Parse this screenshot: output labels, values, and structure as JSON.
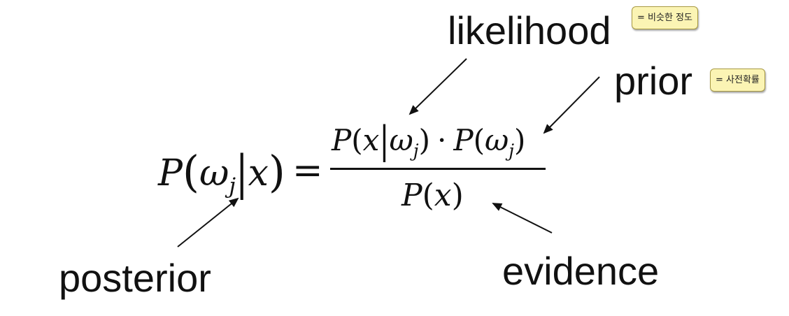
{
  "labels": {
    "likelihood": "likelihood",
    "prior": "prior",
    "posterior": "posterior",
    "evidence": "evidence"
  },
  "notes": {
    "likelihood_note": "= 비슷한 정도",
    "prior_note": "= 사전확률"
  },
  "equation": {
    "lhs": {
      "P": "P",
      "open": "(",
      "omega": "ω",
      "j": "j",
      "bar": "|",
      "x": "x",
      "close": ")"
    },
    "equals": "=",
    "numerator": {
      "P1": "P",
      "open1": "(",
      "x": "x",
      "bar": "|",
      "omega1": "ω",
      "j1": "j",
      "close1": ")",
      "dot": "·",
      "P2": "P",
      "open2": "(",
      "omega2": "ω",
      "j2": "j",
      "close2": ")"
    },
    "denominator": {
      "P": "P",
      "open": "(",
      "x": "x",
      "close": ")"
    }
  },
  "colors": {
    "text": "#111111",
    "note_background": "#fbf4b4",
    "note_border": "#a89a43",
    "background": "#ffffff"
  }
}
